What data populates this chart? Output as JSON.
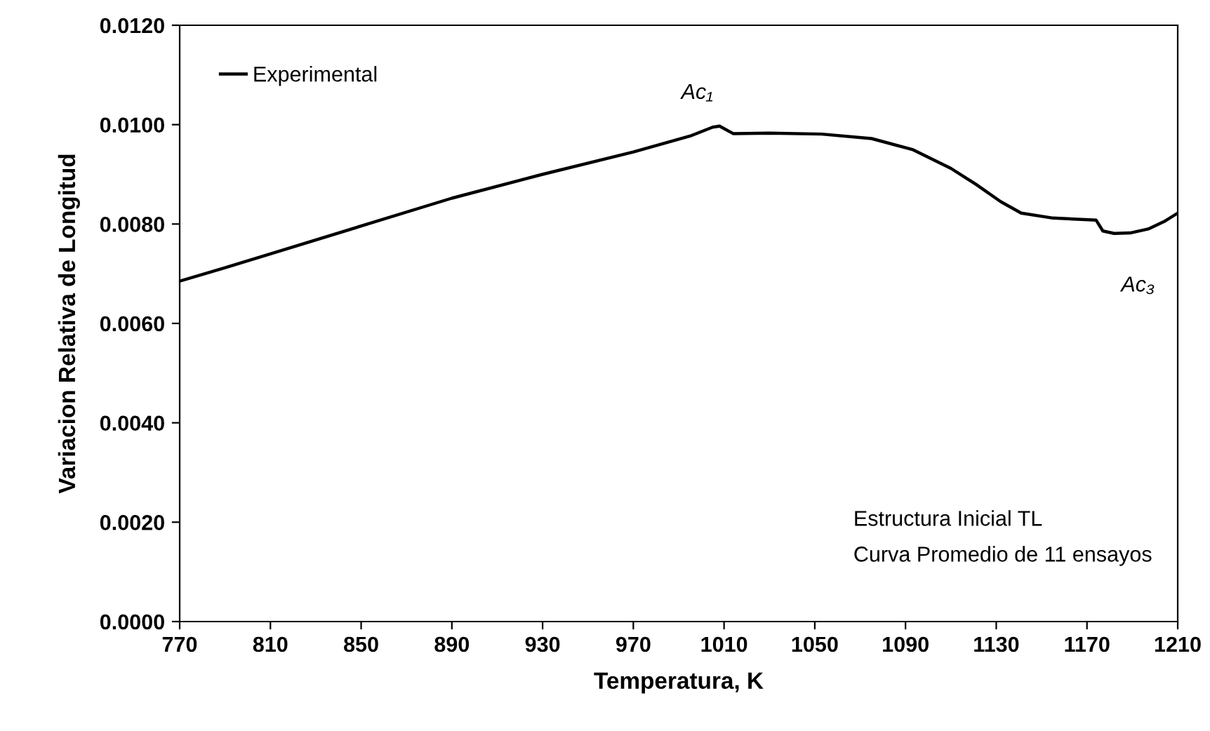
{
  "chart_data": {
    "type": "line",
    "xlabel": "Temperatura, K",
    "ylabel": "Variacion Relativa de Longitud",
    "x": [
      770,
      790,
      810,
      850,
      890,
      930,
      970,
      995,
      1005,
      1008,
      1014,
      1030,
      1053,
      1075,
      1093,
      1110,
      1121,
      1132,
      1141,
      1155,
      1174,
      1177,
      1182,
      1189,
      1197,
      1204,
      1210
    ],
    "series": [
      {
        "name": "Experimental",
        "color": "#000000",
        "values": [
          0.00685,
          0.00712,
          0.0074,
          0.00796,
          0.00852,
          0.009,
          0.00945,
          0.00977,
          0.00995,
          0.00997,
          0.00982,
          0.00983,
          0.00981,
          0.00972,
          0.0095,
          0.00912,
          0.0088,
          0.00845,
          0.00822,
          0.00812,
          0.00808,
          0.00786,
          0.00781,
          0.00782,
          0.0079,
          0.00805,
          0.00822
        ]
      }
    ],
    "xlim": [
      770,
      1210
    ],
    "xticks": [
      770,
      810,
      850,
      890,
      930,
      970,
      1010,
      1050,
      1090,
      1130,
      1170,
      1210
    ],
    "ylim": [
      0,
      0.012
    ],
    "yticks": [
      {
        "value": 0,
        "label": "0.0000"
      },
      {
        "value": 0.002,
        "label": "0.0020"
      },
      {
        "value": 0.004,
        "label": "0.0040"
      },
      {
        "value": 0.006,
        "label": "0.0060"
      },
      {
        "value": 0.008,
        "label": "0.0080"
      },
      {
        "value": 0.01,
        "label": "0.0100"
      },
      {
        "value": 0.012,
        "label": "0.0120"
      }
    ],
    "annotations": [
      {
        "text": "Ac₁",
        "x": 1005,
        "y": 0.00997
      },
      {
        "text": "Ac₃",
        "x": 1189,
        "y": 0.00782
      },
      "Estructura Inicial TL",
      "Curva Promedio de 11 ensayos"
    ],
    "grid": false,
    "legend": "top left",
    "marker": "none",
    "line_style": "solid"
  }
}
